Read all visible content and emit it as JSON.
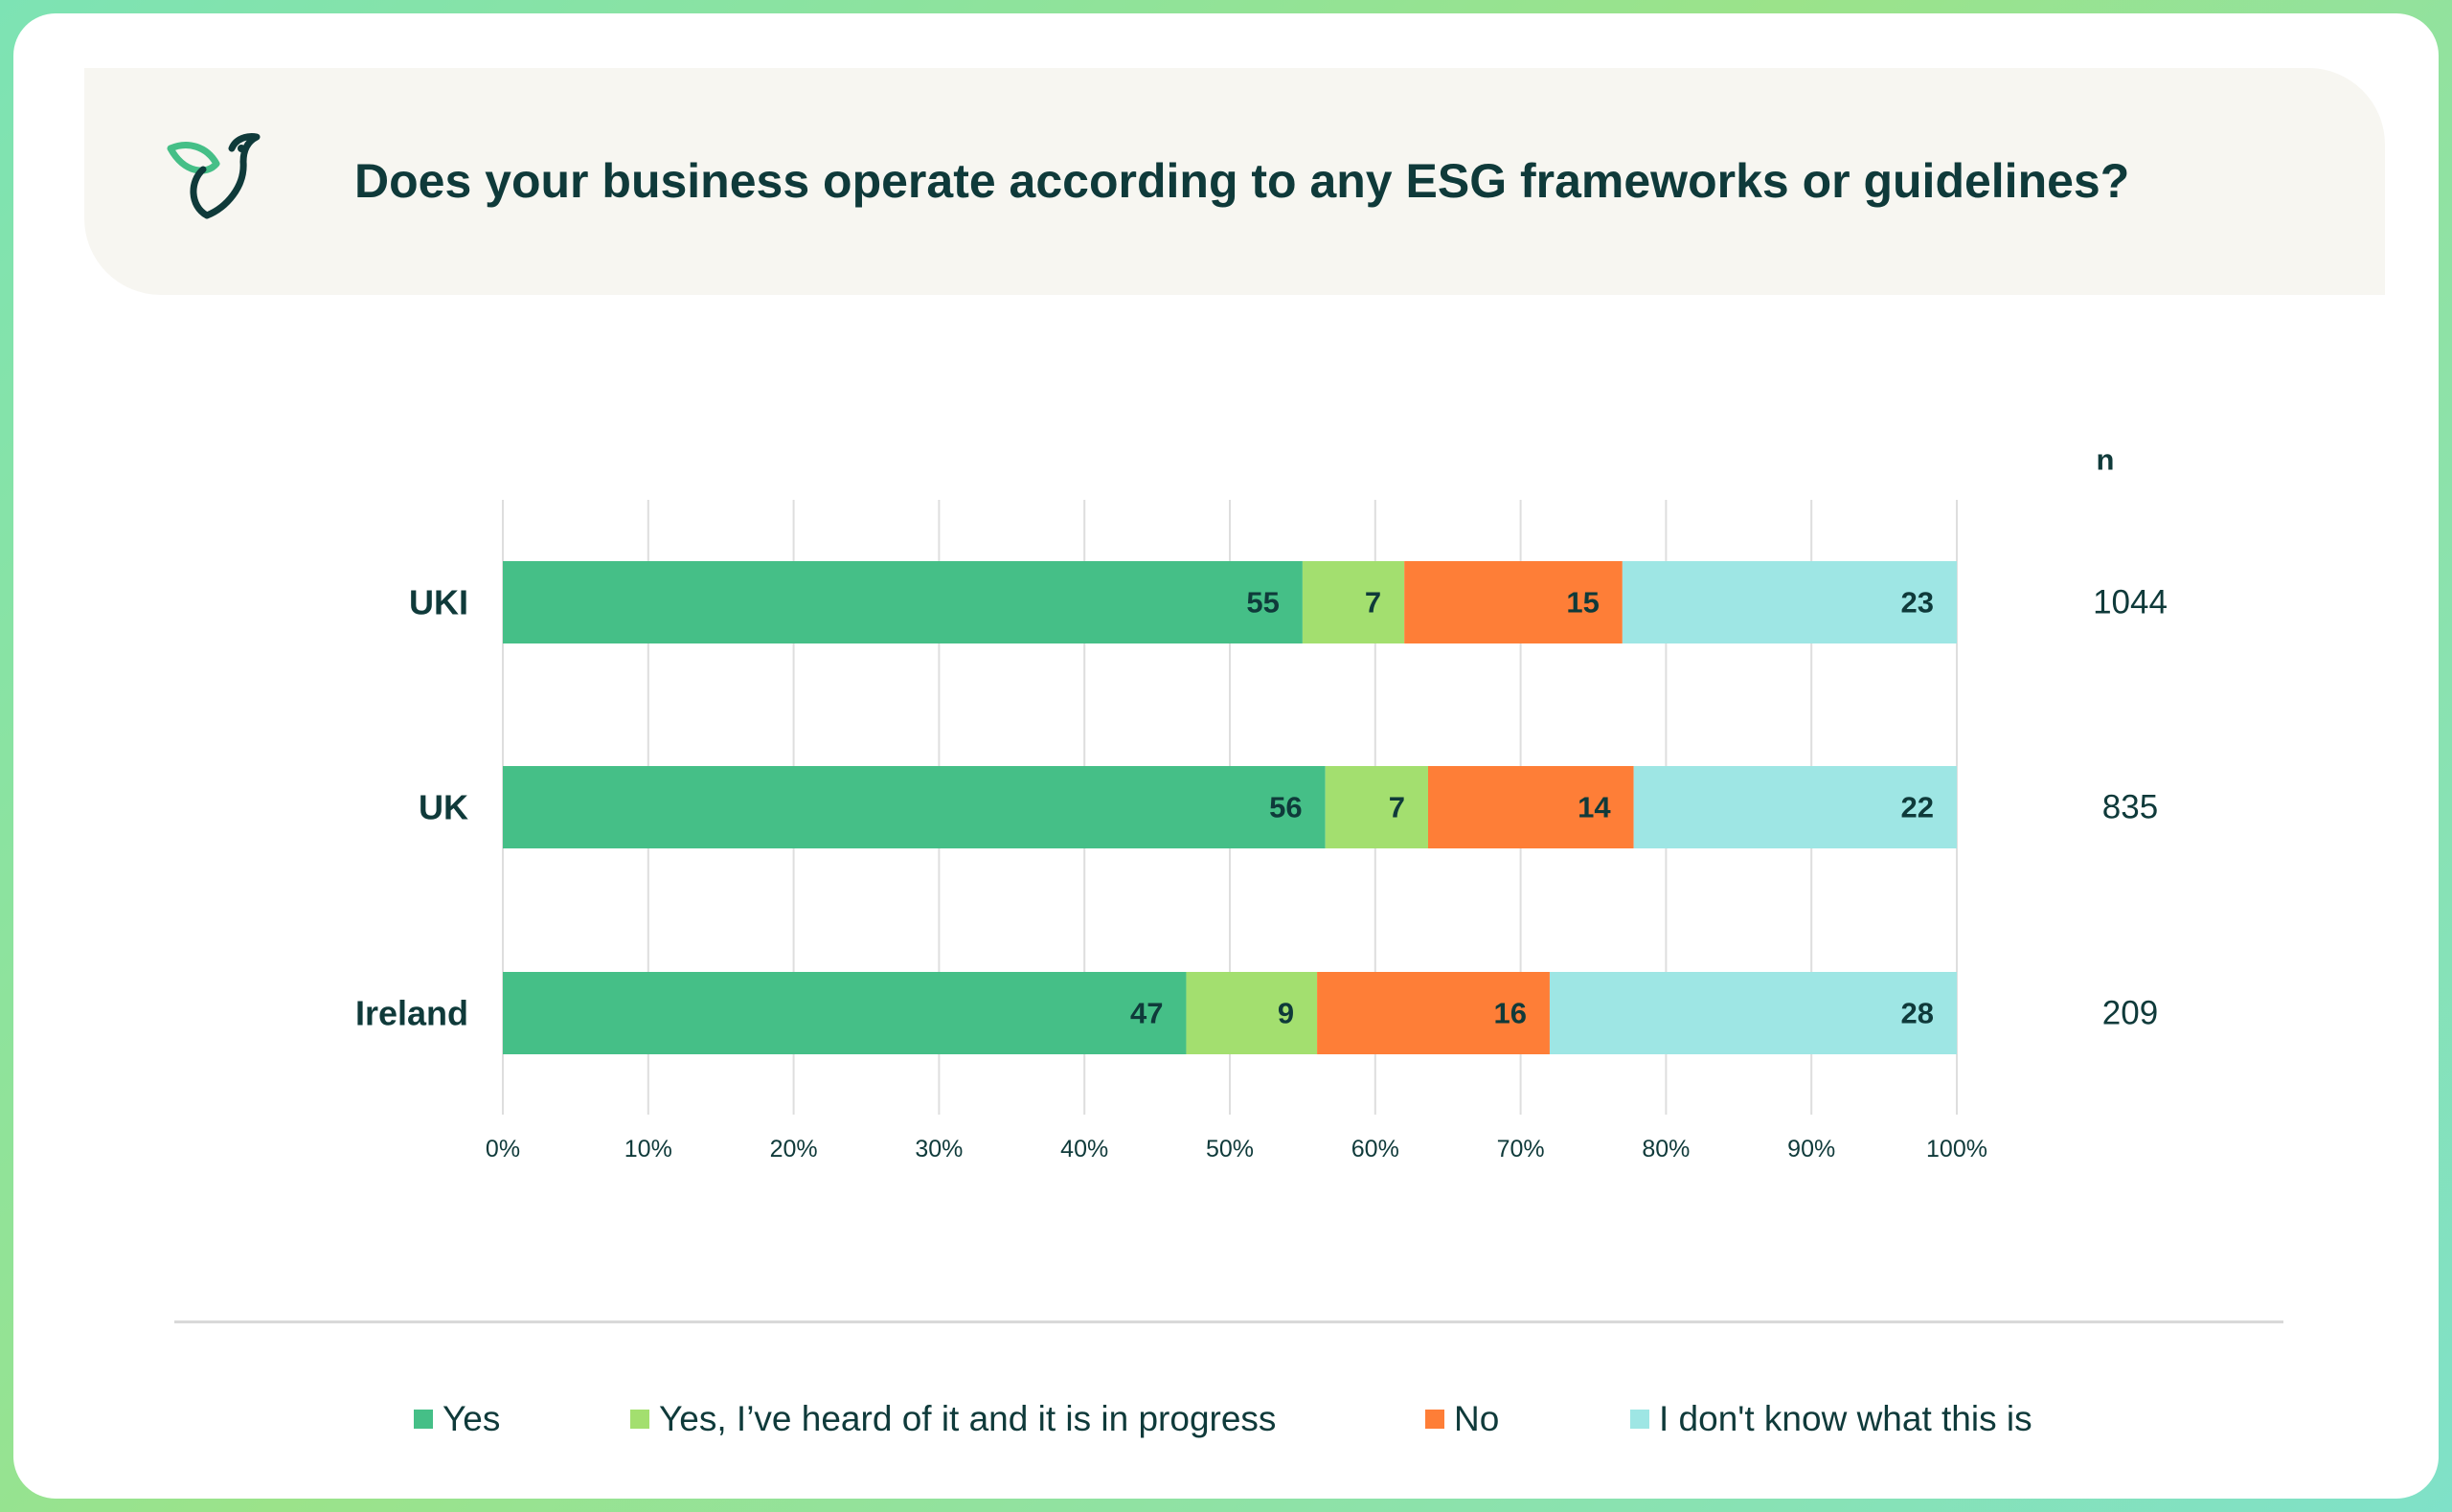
{
  "title": "Does your business operate according to any ESG frameworks or guidelines?",
  "chart_data": {
    "type": "bar",
    "orientation": "horizontal",
    "stacked": true,
    "categories": [
      "UKI",
      "UK",
      "Ireland"
    ],
    "series": [
      {
        "name": "Yes",
        "values": [
          55,
          56,
          47
        ],
        "color": "#45bf87"
      },
      {
        "name": "Yes, I've heard of it and it is in progress",
        "values": [
          7,
          7,
          9
        ],
        "color": "#a3df6f"
      },
      {
        "name": "No",
        "values": [
          15,
          14,
          16
        ],
        "color": "#fe7e37"
      },
      {
        "name": "I don't know what this is",
        "values": [
          23,
          22,
          28
        ],
        "color": "#9ee6e4"
      }
    ],
    "n_header": "n",
    "n_values": [
      "1044",
      "835",
      "209"
    ],
    "x_ticks": [
      "0%",
      "10%",
      "20%",
      "30%",
      "40%",
      "50%",
      "60%",
      "70%",
      "80%",
      "90%",
      "100%"
    ],
    "xlim": [
      0,
      100
    ],
    "grid": true,
    "legend_position": "bottom"
  },
  "legend": [
    {
      "label": "Yes",
      "color": "#45bf87"
    },
    {
      "label": "Yes, I’ve heard of it and it is in progress",
      "color": "#a3df6f"
    },
    {
      "label": "No",
      "color": "#fe7e37"
    },
    {
      "label": "I don't know what this is",
      "color": "#9ee6e4"
    }
  ]
}
